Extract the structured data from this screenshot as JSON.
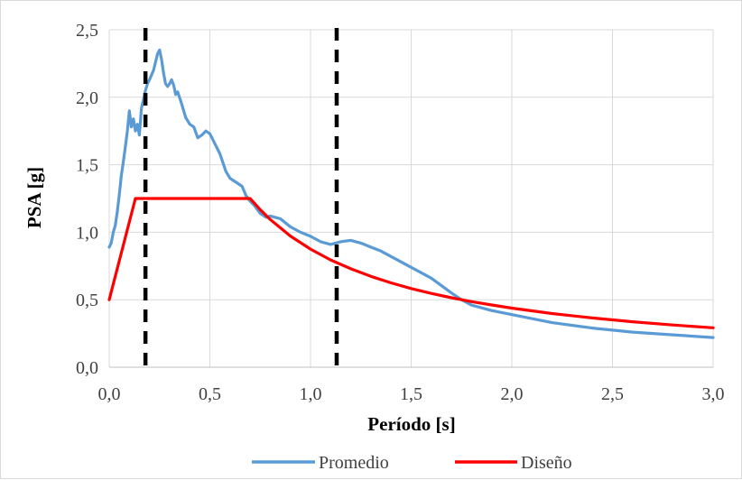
{
  "chart_data": {
    "type": "line",
    "title": "",
    "xlabel": "Período [s]",
    "ylabel": "PSA [g]",
    "xlim": [
      0,
      3.0
    ],
    "ylim": [
      0,
      2.5
    ],
    "x_ticks": [
      0,
      0.5,
      1.0,
      1.5,
      2.0,
      2.5,
      3.0
    ],
    "y_ticks": [
      0,
      0.5,
      1.0,
      1.5,
      2.0,
      2.5
    ],
    "x_tick_labels": [
      "0,0",
      "0,5",
      "1,0",
      "1,5",
      "2,0",
      "2,5",
      "3,0"
    ],
    "y_tick_labels": [
      "0,0",
      "0,5",
      "1,0",
      "1,5",
      "2,0",
      "2,5"
    ],
    "grid": true,
    "legend_position": "bottom",
    "series": [
      {
        "name": "Promedio",
        "color": "#5b9bd5",
        "x": [
          0.0,
          0.01,
          0.02,
          0.03,
          0.04,
          0.05,
          0.06,
          0.07,
          0.08,
          0.09,
          0.1,
          0.11,
          0.12,
          0.13,
          0.14,
          0.15,
          0.16,
          0.17,
          0.18,
          0.19,
          0.2,
          0.22,
          0.24,
          0.25,
          0.26,
          0.27,
          0.28,
          0.29,
          0.3,
          0.31,
          0.32,
          0.33,
          0.34,
          0.36,
          0.38,
          0.4,
          0.42,
          0.44,
          0.46,
          0.48,
          0.5,
          0.52,
          0.55,
          0.58,
          0.6,
          0.63,
          0.66,
          0.68,
          0.7,
          0.72,
          0.75,
          0.78,
          0.8,
          0.85,
          0.9,
          0.95,
          1.0,
          1.05,
          1.1,
          1.15,
          1.2,
          1.25,
          1.3,
          1.35,
          1.4,
          1.45,
          1.5,
          1.6,
          1.7,
          1.75,
          1.8,
          1.9,
          2.0,
          2.2,
          2.4,
          2.6,
          2.8,
          3.0
        ],
        "values": [
          0.89,
          0.92,
          1.0,
          1.05,
          1.15,
          1.28,
          1.42,
          1.52,
          1.63,
          1.75,
          1.9,
          1.78,
          1.84,
          1.75,
          1.8,
          1.72,
          1.92,
          1.98,
          2.05,
          2.1,
          2.13,
          2.2,
          2.32,
          2.35,
          2.28,
          2.18,
          2.1,
          2.08,
          2.1,
          2.13,
          2.09,
          2.02,
          2.04,
          1.95,
          1.85,
          1.8,
          1.78,
          1.7,
          1.72,
          1.75,
          1.73,
          1.67,
          1.58,
          1.45,
          1.4,
          1.37,
          1.34,
          1.27,
          1.23,
          1.2,
          1.14,
          1.11,
          1.12,
          1.1,
          1.04,
          1.0,
          0.97,
          0.93,
          0.91,
          0.93,
          0.94,
          0.92,
          0.89,
          0.86,
          0.82,
          0.78,
          0.74,
          0.66,
          0.55,
          0.5,
          0.46,
          0.42,
          0.39,
          0.33,
          0.29,
          0.26,
          0.24,
          0.22
        ]
      },
      {
        "name": "Diseño",
        "color": "#ff0000",
        "x": [
          0.0,
          0.13,
          0.7,
          0.75,
          0.8,
          0.9,
          1.0,
          1.1,
          1.2,
          1.3,
          1.4,
          1.5,
          1.6,
          1.7,
          1.8,
          1.9,
          2.0,
          2.2,
          2.4,
          2.6,
          2.8,
          3.0
        ],
        "values": [
          0.5,
          1.25,
          1.25,
          1.167,
          1.094,
          0.972,
          0.875,
          0.795,
          0.729,
          0.673,
          0.625,
          0.583,
          0.547,
          0.515,
          0.486,
          0.461,
          0.438,
          0.398,
          0.365,
          0.337,
          0.313,
          0.292
        ]
      }
    ],
    "vertical_markers": [
      {
        "x": 0.18,
        "style": "dashed",
        "color": "#000000"
      },
      {
        "x": 1.13,
        "style": "dashed",
        "color": "#000000"
      }
    ]
  }
}
